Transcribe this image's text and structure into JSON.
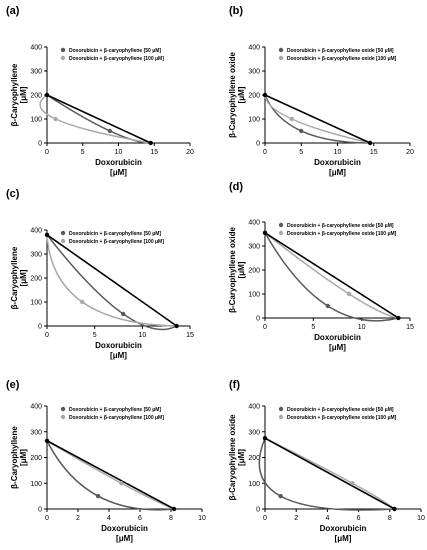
{
  "chart_data": [
    {
      "panel": "(a)",
      "type": "line",
      "title": "",
      "xlabel": [
        "Doxorubicin",
        "[μM]"
      ],
      "ylabel": [
        "β-Caryophyllene",
        "[μM]"
      ],
      "xlim": [
        0,
        20
      ],
      "ylim": [
        0,
        400
      ],
      "xticks": [
        0,
        5,
        10,
        15,
        20
      ],
      "yticks": [
        0,
        100,
        200,
        300,
        400
      ],
      "additivity_line": {
        "x": [
          0,
          14.5
        ],
        "y": [
          200,
          0
        ]
      },
      "series": [
        {
          "name": "Doxorubicin + β-caryophyllene [50 μM]",
          "color": "#5a5a5a",
          "x": [
            0,
            8.8,
            14.5
          ],
          "y": [
            200,
            50,
            0
          ],
          "point_index": 1
        },
        {
          "name": "Doxorubicin + β-caryophyllene [100 μM]",
          "color": "#a8a8a8",
          "x": [
            0,
            1.2,
            14.5
          ],
          "y": [
            200,
            100,
            0
          ],
          "point_index": 1
        }
      ],
      "legend": "top-right"
    },
    {
      "panel": "(b)",
      "type": "line",
      "title": "",
      "xlabel": [
        "Doxorubicin",
        "[μM]"
      ],
      "ylabel": [
        "β-Caryophyllene oxide",
        "[μM]"
      ],
      "xlim": [
        0,
        20
      ],
      "ylim": [
        0,
        400
      ],
      "xticks": [
        0,
        5,
        10,
        15,
        20
      ],
      "yticks": [
        0,
        100,
        200,
        300,
        400
      ],
      "additivity_line": {
        "x": [
          0,
          14.5
        ],
        "y": [
          200,
          0
        ]
      },
      "series": [
        {
          "name": "Doxorubicin + β-caryophyllene oxide [50 μM]",
          "color": "#5a5a5a",
          "x": [
            0,
            5.0,
            14.5
          ],
          "y": [
            200,
            50,
            0
          ],
          "point_index": 1
        },
        {
          "name": "Doxorubicin + β-caryophyllene oxide [100 μM]",
          "color": "#a8a8a8",
          "x": [
            0,
            3.7,
            14.5
          ],
          "y": [
            200,
            100,
            0
          ],
          "point_index": 1
        }
      ],
      "legend": "top-right"
    },
    {
      "panel": "(c)",
      "type": "line",
      "title": "",
      "xlabel": [
        "Doxorubicin",
        "[μM]"
      ],
      "ylabel": [
        "β-Caryophyllene",
        "[μM]"
      ],
      "xlim": [
        0,
        15
      ],
      "ylim": [
        0,
        400
      ],
      "xticks": [
        0,
        5,
        10,
        15
      ],
      "yticks": [
        0,
        100,
        200,
        300,
        400
      ],
      "additivity_line": {
        "x": [
          0,
          13.6
        ],
        "y": [
          380,
          0
        ]
      },
      "series": [
        {
          "name": "Doxorubicin + β-caryophyllene [50 μM]",
          "color": "#5a5a5a",
          "x": [
            0,
            8.0,
            13.6
          ],
          "y": [
            380,
            50,
            0
          ],
          "point_index": 1
        },
        {
          "name": "Doxorubicin + β-caryophyllene [100 μM]",
          "color": "#a8a8a8",
          "x": [
            0,
            3.7,
            13.6
          ],
          "y": [
            380,
            100,
            0
          ],
          "point_index": 1
        }
      ],
      "legend": "top-right"
    },
    {
      "panel": "(d)",
      "type": "line",
      "title": "",
      "xlabel": [
        "Doxorubicin",
        "[μM]"
      ],
      "ylabel": [
        "β-Caryophyllene oxide",
        "[μM]"
      ],
      "xlim": [
        0,
        15
      ],
      "ylim": [
        0,
        400
      ],
      "xticks": [
        0,
        5,
        10,
        15
      ],
      "yticks": [
        0,
        100,
        200,
        300,
        400
      ],
      "additivity_line": {
        "x": [
          0,
          13.8
        ],
        "y": [
          355,
          0
        ]
      },
      "series": [
        {
          "name": "Doxorubicin + β-caryophyllene oxide [50 μM]",
          "color": "#5a5a5a",
          "x": [
            0,
            6.5,
            13.8
          ],
          "y": [
            355,
            50,
            0
          ],
          "point_index": 1
        },
        {
          "name": "Doxorubicin + β-caryophyllene oxide [100 μM]",
          "color": "#a8a8a8",
          "x": [
            0,
            8.7,
            13.8
          ],
          "y": [
            355,
            100,
            0
          ],
          "point_index": 1
        }
      ],
      "legend": "top-right"
    },
    {
      "panel": "(e)",
      "type": "line",
      "title": "",
      "xlabel": [
        "Doxorubicin",
        "[μM]"
      ],
      "ylabel": [
        "β-Caryophyllene",
        "[μM]"
      ],
      "xlim": [
        0,
        10
      ],
      "ylim": [
        0,
        400
      ],
      "xticks": [
        0,
        2,
        4,
        6,
        8,
        10
      ],
      "yticks": [
        0,
        100,
        200,
        300,
        400
      ],
      "additivity_line": {
        "x": [
          0,
          8.2
        ],
        "y": [
          265,
          0
        ]
      },
      "series": [
        {
          "name": "Doxorubicin + β-caryophyllene [50 μM]",
          "color": "#5a5a5a",
          "x": [
            0,
            3.3,
            8.2
          ],
          "y": [
            265,
            50,
            0
          ],
          "point_index": 1
        },
        {
          "name": "Doxorubicin + β-caryophyllene [100 μM]",
          "color": "#a8a8a8",
          "x": [
            0,
            4.8,
            8.2
          ],
          "y": [
            265,
            100,
            0
          ],
          "point_index": 1
        }
      ],
      "legend": "top-right"
    },
    {
      "panel": "(f)",
      "type": "line",
      "title": "",
      "xlabel": [
        "Doxorubicin",
        "[μM]"
      ],
      "ylabel": [
        "β-Caryophyllene oxide",
        "[μM]"
      ],
      "xlim": [
        0,
        10
      ],
      "ylim": [
        0,
        400
      ],
      "xticks": [
        0,
        2,
        4,
        6,
        8,
        10
      ],
      "yticks": [
        0,
        100,
        200,
        300,
        400
      ],
      "additivity_line": {
        "x": [
          0,
          8.3
        ],
        "y": [
          275,
          0
        ]
      },
      "series": [
        {
          "name": "Doxorubicin + β-caryophyllene oxide [50 μM]",
          "color": "#5a5a5a",
          "x": [
            0,
            1.0,
            8.3
          ],
          "y": [
            275,
            50,
            0
          ],
          "point_index": 1
        },
        {
          "name": "Doxorubicin + β-caryophyllene oxide [100 μM]",
          "color": "#a8a8a8",
          "x": [
            0,
            5.6,
            8.3
          ],
          "y": [
            275,
            100,
            0
          ],
          "point_index": 1
        }
      ],
      "legend": "top-right"
    }
  ]
}
